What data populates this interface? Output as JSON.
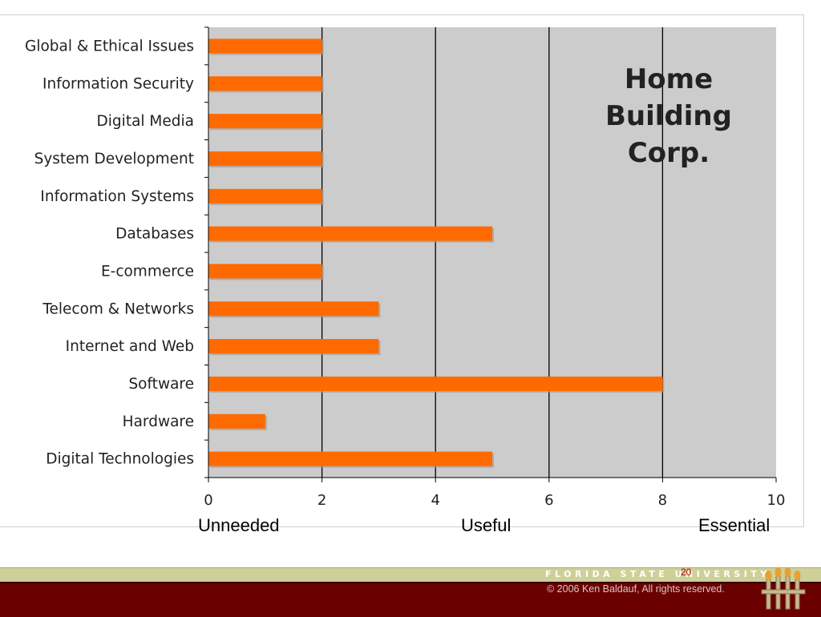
{
  "chart_data": {
    "type": "bar",
    "orientation": "horizontal",
    "annotation": "Home Building Corp.",
    "categories": [
      "Global & Ethical Issues",
      "Information Security",
      "Digital Media",
      "System Development",
      "Information Systems",
      "Databases",
      "E-commerce",
      "Telecom & Networks",
      "Internet and Web",
      "Software",
      "Hardware",
      "Digital Technologies"
    ],
    "values": [
      2,
      2,
      2,
      2,
      2,
      5,
      2,
      3,
      3,
      8,
      1,
      5
    ],
    "xlim": [
      0,
      10
    ],
    "xticks": [
      "0",
      "2",
      "4",
      "6",
      "8",
      "10"
    ],
    "grid": true,
    "bar_color": "#ff6a00",
    "plot_background": "#cccccc",
    "scale_labels": [
      "Unneeded",
      "Useful",
      "Essential"
    ]
  },
  "footer": {
    "university": "FLORIDA STATE UNIVERSITY",
    "page_number": "20",
    "copyright": "© 2006 Ken Baldauf, All rights reserved.",
    "logo_icon": "torch-icon"
  }
}
